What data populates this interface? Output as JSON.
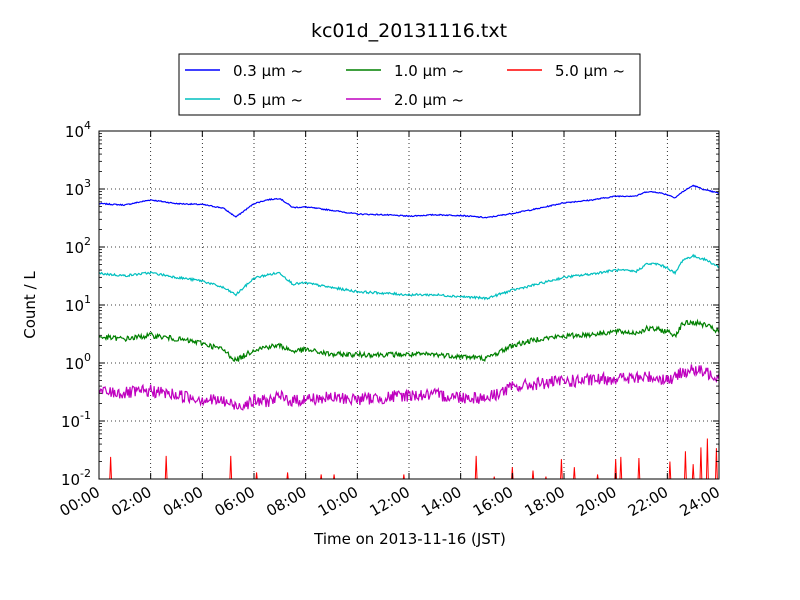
{
  "chart_data": {
    "type": "line",
    "title": "kc01d_20131116.txt",
    "xlabel": "Time on 2013-11-16 (JST)",
    "ylabel": "Count / L",
    "x_ticks": [
      "00:00",
      "02:00",
      "04:00",
      "06:00",
      "08:00",
      "10:00",
      "12:00",
      "14:00",
      "16:00",
      "18:00",
      "20:00",
      "22:00",
      "24:00"
    ],
    "x_range_hours": [
      0,
      24
    ],
    "y_scale": "log",
    "ylim": [
      0.01,
      10000
    ],
    "y_ticks": [
      {
        "value": 0.01,
        "base": "10",
        "exp": "-2"
      },
      {
        "value": 0.1,
        "base": "10",
        "exp": "-1"
      },
      {
        "value": 1,
        "base": "10",
        "exp": "0"
      },
      {
        "value": 10,
        "base": "10",
        "exp": "1"
      },
      {
        "value": 100,
        "base": "10",
        "exp": "2"
      },
      {
        "value": 1000,
        "base": "10",
        "exp": "3"
      },
      {
        "value": 10000,
        "base": "10",
        "exp": "4"
      }
    ],
    "grid": true,
    "legend_position": "top",
    "series": [
      {
        "name": "0.3 μm ~",
        "color": "#0000ff",
        "noise": 0.01,
        "x": [
          0,
          1,
          2,
          3,
          4,
          4.8,
          5.3,
          6,
          6.5,
          7,
          7.5,
          8,
          9,
          10,
          11,
          12,
          13,
          14,
          15,
          16,
          17,
          18,
          19,
          20,
          20.8,
          21.2,
          21.6,
          22,
          22.3,
          22.6,
          23,
          23.5,
          24
        ],
        "y": [
          560,
          530,
          650,
          560,
          540,
          470,
          330,
          560,
          650,
          690,
          480,
          490,
          430,
          370,
          360,
          340,
          360,
          350,
          320,
          380,
          460,
          580,
          640,
          750,
          760,
          900,
          880,
          800,
          710,
          900,
          1150,
          950,
          850
        ]
      },
      {
        "name": "0.5 μm ~",
        "color": "#00bfbf",
        "noise": 0.02,
        "x": [
          0,
          1,
          2,
          3,
          4,
          4.8,
          5.3,
          6,
          6.5,
          7,
          7.5,
          8,
          9,
          10,
          11,
          12,
          13,
          14,
          15,
          16,
          17,
          18,
          19,
          20,
          20.8,
          21.2,
          21.6,
          22,
          22.3,
          22.6,
          23,
          23.5,
          24
        ],
        "y": [
          35,
          32,
          36,
          30,
          26,
          20,
          15,
          29,
          33,
          36,
          23,
          24,
          20,
          17,
          16,
          15,
          15,
          14,
          13,
          18,
          23,
          30,
          34,
          40,
          38,
          51,
          51,
          44,
          35,
          60,
          70,
          60,
          45
        ]
      },
      {
        "name": "1.0 μm ~",
        "color": "#008000",
        "noise": 0.045,
        "x": [
          0,
          1,
          2,
          3,
          4,
          4.8,
          5.3,
          6,
          6.5,
          7,
          7.5,
          8,
          9,
          10,
          11,
          12,
          13,
          14,
          15,
          16,
          17,
          18,
          19,
          20,
          20.8,
          21.2,
          21.6,
          22,
          22.3,
          22.6,
          23,
          23.5,
          24
        ],
        "y": [
          2.8,
          2.6,
          3.0,
          2.6,
          2.2,
          1.7,
          1.1,
          1.7,
          1.9,
          2.0,
          1.6,
          1.7,
          1.4,
          1.4,
          1.4,
          1.4,
          1.4,
          1.3,
          1.2,
          2.0,
          2.6,
          2.9,
          3.1,
          3.5,
          3.3,
          3.9,
          3.8,
          3.5,
          3.0,
          4.8,
          5.0,
          4.5,
          3.4
        ]
      },
      {
        "name": "2.0 μm ~",
        "color": "#bf00bf",
        "noise": 0.11,
        "x": [
          0,
          1,
          2,
          3,
          4,
          4.8,
          5.3,
          6,
          6.5,
          7,
          7.5,
          8,
          9,
          10,
          11,
          12,
          13,
          14,
          15,
          16,
          17,
          18,
          19,
          20,
          20.8,
          21.2,
          21.6,
          22,
          22.3,
          22.6,
          23,
          23.5,
          24
        ],
        "y": [
          0.32,
          0.3,
          0.33,
          0.28,
          0.24,
          0.22,
          0.18,
          0.22,
          0.22,
          0.26,
          0.22,
          0.24,
          0.25,
          0.24,
          0.25,
          0.28,
          0.28,
          0.26,
          0.25,
          0.38,
          0.44,
          0.48,
          0.5,
          0.55,
          0.54,
          0.58,
          0.56,
          0.52,
          0.55,
          0.72,
          0.75,
          0.68,
          0.6
        ]
      },
      {
        "name": "5.0 μm ~",
        "color": "#ff0000",
        "spikes": true,
        "x": [
          0.45,
          2.6,
          5.1,
          6.1,
          7.3,
          8.6,
          9.1,
          11.8,
          14.6,
          15.3,
          16.0,
          16.8,
          17.3,
          17.9,
          18.4,
          19.3,
          20.0,
          20.2,
          20.9,
          22.1,
          22.7,
          23.0,
          23.3,
          23.55,
          23.9
        ],
        "y": [
          0.024,
          0.025,
          0.025,
          0.013,
          0.013,
          0.012,
          0.012,
          0.012,
          0.025,
          0.011,
          0.016,
          0.014,
          0.011,
          0.022,
          0.016,
          0.012,
          0.022,
          0.024,
          0.023,
          0.02,
          0.03,
          0.018,
          0.035,
          0.05,
          0.034
        ]
      }
    ]
  }
}
